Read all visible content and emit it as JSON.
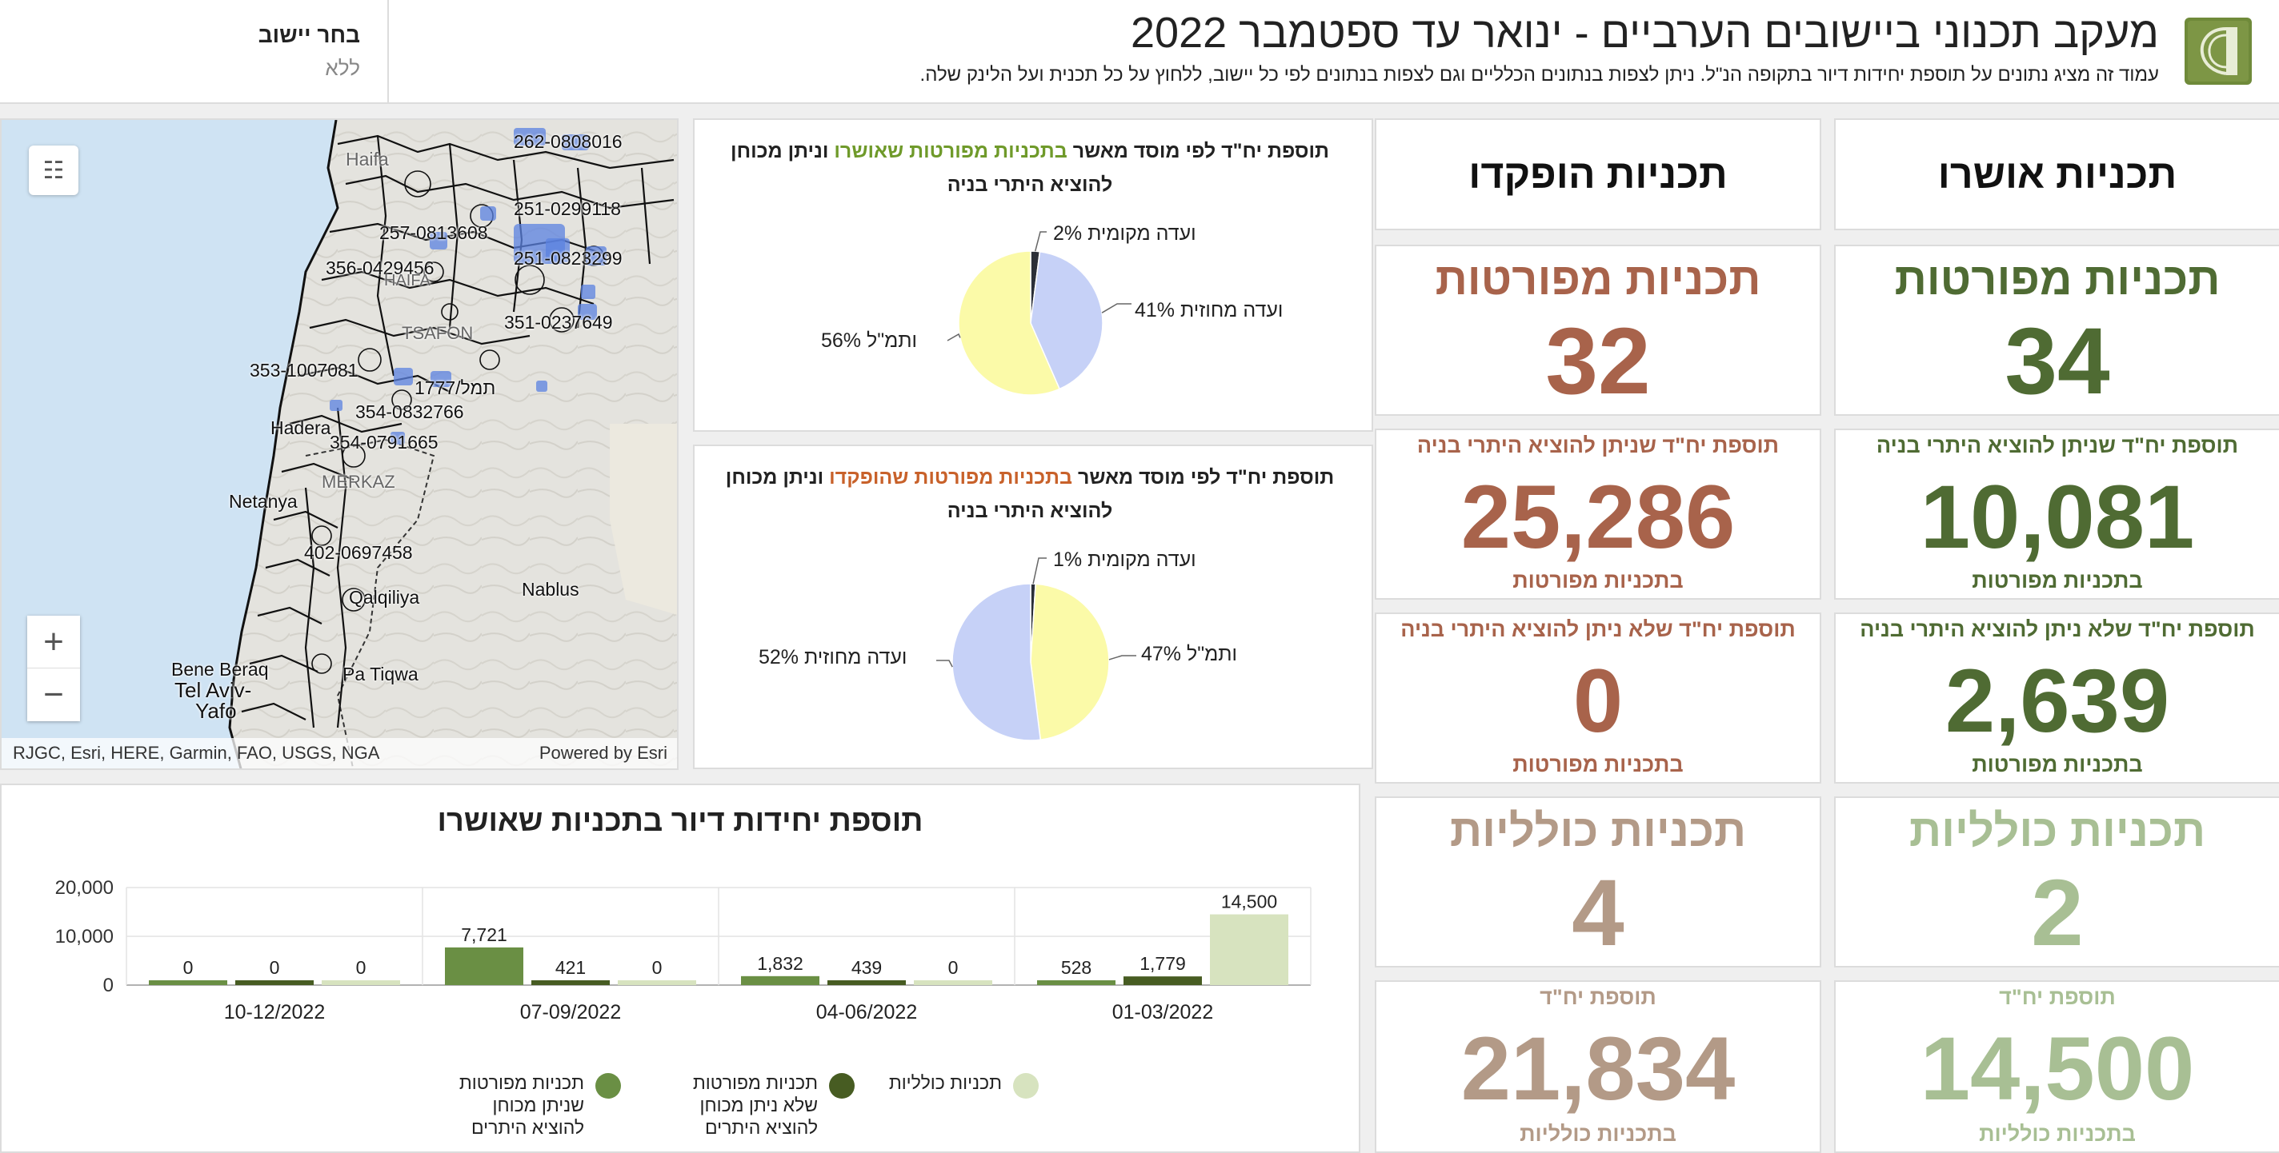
{
  "header": {
    "title": "מעקב תכנוני ביישובים הערביים - ינואר עד ספטמבר 2022",
    "subtitle": "עמוד זה מציג נתונים על תוספת יחידות דיור בתקופה הנ\"ל. ניתן לצפות בנתונים הכלליים וגם לצפות בנתונים לפי כל יישוב, ללחוץ על כל תכנית ועל הלינק שלה.",
    "logo_icon": "organization-logo-icon",
    "selector_label": "בחר יישוב",
    "selector_value": "ללא"
  },
  "map": {
    "labels": [
      {
        "text": "Haifa",
        "grey": true
      },
      {
        "text": "262-0808016",
        "grey": false
      },
      {
        "text": "251-0299118",
        "grey": false
      },
      {
        "text": "257-0813608",
        "grey": false
      },
      {
        "text": "251-0823299",
        "grey": false
      },
      {
        "text": "356-0429456",
        "grey": false
      },
      {
        "text": "HAIFA",
        "grey": true
      },
      {
        "text": "351-0237649",
        "grey": false
      },
      {
        "text": "TSAFON",
        "grey": true
      },
      {
        "text": "353-1007081",
        "grey": false
      },
      {
        "text": "תמל/1777",
        "grey": false
      },
      {
        "text": "354-0832766",
        "grey": false
      },
      {
        "text": "Hadera",
        "grey": false
      },
      {
        "text": "354-0791665",
        "grey": false
      },
      {
        "text": "MERKAZ",
        "grey": true
      },
      {
        "text": "Netanya",
        "grey": false
      },
      {
        "text": "402-0697458",
        "grey": false
      },
      {
        "text": "Qalqiliya",
        "grey": false
      },
      {
        "text": "Nablus",
        "grey": false
      },
      {
        "text": "Bene Beraq",
        "grey": false
      },
      {
        "text": "Tel Aviv-",
        "grey": false
      },
      {
        "text": "Yafo",
        "grey": false
      },
      {
        "text": "Pa Tiqwa",
        "grey": false
      }
    ],
    "legend_icon": "layer-list-icon",
    "zoom_in": "+",
    "zoom_out": "−",
    "attribution": "RJGC, Esri, HERE, Garmin, FAO, USGS, NGA",
    "powered_by": "Powered by Esri"
  },
  "pie_approved": {
    "title_pre": "תוספת יח\"ד לפי מוסד מאשר ",
    "title_highlight": "בתכניות מפורטות שאושרו",
    "title_post": " וניתן מכוחן להוציא היתרי בניה",
    "highlight_color": "#6f9a2a",
    "labels": {
      "local": "ועדה מקומית 2%",
      "district": "ועדה מחוזית 41%",
      "national": "ותמ\"ל 56%"
    }
  },
  "pie_deposited": {
    "title_pre": "תוספת יח\"ד לפי מוסד מאשר ",
    "title_highlight": "בתכניות מפורטות שהופקדו",
    "title_post": " וניתן מכוחן להוציא היתרי בניה",
    "highlight_color": "#c8612a",
    "labels": {
      "local": "ועדה מקומית 1%",
      "district": "ועדה מחוזית 52%",
      "national": "ותמ\"ל 47%"
    }
  },
  "kpi": {
    "approved": {
      "header": "תכניות אושרו",
      "detailed_title": "תכניות מפורטות",
      "detailed_count": "34",
      "units_permit_top": "תוספת יח\"ד שניתן להוציא היתרי בניה",
      "units_permit_value": "10,081",
      "units_permit_bottom": "בתכניות מפורטות",
      "units_nopermit_top": "תוספת יח\"ד שלא ניתן להוציא היתרי בניה",
      "units_nopermit_value": "2,639",
      "units_nopermit_bottom": "בתכניות מפורטות",
      "outline_title": "תכניות כולליות",
      "outline_count": "2",
      "outline_units_top": "תוספת יח\"ד",
      "outline_units_value": "14,500",
      "outline_units_bottom": "בתכניות כולליות",
      "color_main": "#4f6b33",
      "color_light": "#a8bf94"
    },
    "deposited": {
      "header": "תכניות הופקדו",
      "detailed_title": "תכניות מפורטות",
      "detailed_count": "32",
      "units_permit_top": "תוספת יח\"ד שניתן להוציא היתרי בניה",
      "units_permit_value": "25,286",
      "units_permit_bottom": "בתכניות מפורטות",
      "units_nopermit_top": "תוספת יח\"ד שלא ניתן להוציא היתרי בניה",
      "units_nopermit_value": "0",
      "units_nopermit_bottom": "בתכניות מפורטות",
      "outline_title": "תכניות כולליות",
      "outline_count": "4",
      "outline_units_top": "תוספת יח\"ד",
      "outline_units_value": "21,834",
      "outline_units_bottom": "בתכניות כולליות",
      "color_main": "#a8634b",
      "color_light": "#b39a87"
    }
  },
  "chart_data": [
    {
      "type": "pie",
      "title": "תוספת יח\"ד לפי מוסד מאשר בתכניות מפורטות שאושרו וניתן מכוחן להוציא היתרי בניה",
      "labels": [
        "ועדה מקומית",
        "ועדה מחוזית",
        "ותמ\"ל"
      ],
      "values": [
        2,
        41,
        56
      ],
      "colors": [
        "#2b2f38",
        "#c6d1f7",
        "#fbfaa8"
      ]
    },
    {
      "type": "pie",
      "title": "תוספת יח\"ד לפי מוסד מאשר בתכניות מפורטות שהופקדו וניתן מכוחן להוציא היתרי בניה",
      "labels": [
        "ועדה מקומית",
        "ותמ\"ל",
        "ועדה מחוזית"
      ],
      "values": [
        1,
        47,
        52
      ],
      "colors": [
        "#2b2f38",
        "#fbfaa8",
        "#c6d1f7"
      ]
    },
    {
      "type": "bar",
      "title": "תוספת יחידות דיור בתכניות שאושרו",
      "categories": [
        "10-12/2022",
        "07-09/2022",
        "04-06/2022",
        "01-03/2022"
      ],
      "series": [
        {
          "name": "תכניות מפורטות שניתן מכוחן להוציא היתרים",
          "values": [
            0,
            7721,
            1832,
            528
          ],
          "color": "#6a8f44"
        },
        {
          "name": "תכניות מפורטות שלא ניתן מכוחן להוציא היתרים",
          "values": [
            0,
            421,
            439,
            1779
          ],
          "color": "#475c22"
        },
        {
          "name": "תכניות כולליות",
          "values": [
            0,
            0,
            0,
            14500
          ],
          "color": "#d7e3bf"
        }
      ],
      "y_ticks": [
        "0",
        "10,000",
        "20,000"
      ],
      "ylim": [
        0,
        20000
      ],
      "grid": true,
      "legend": "bottom"
    }
  ]
}
